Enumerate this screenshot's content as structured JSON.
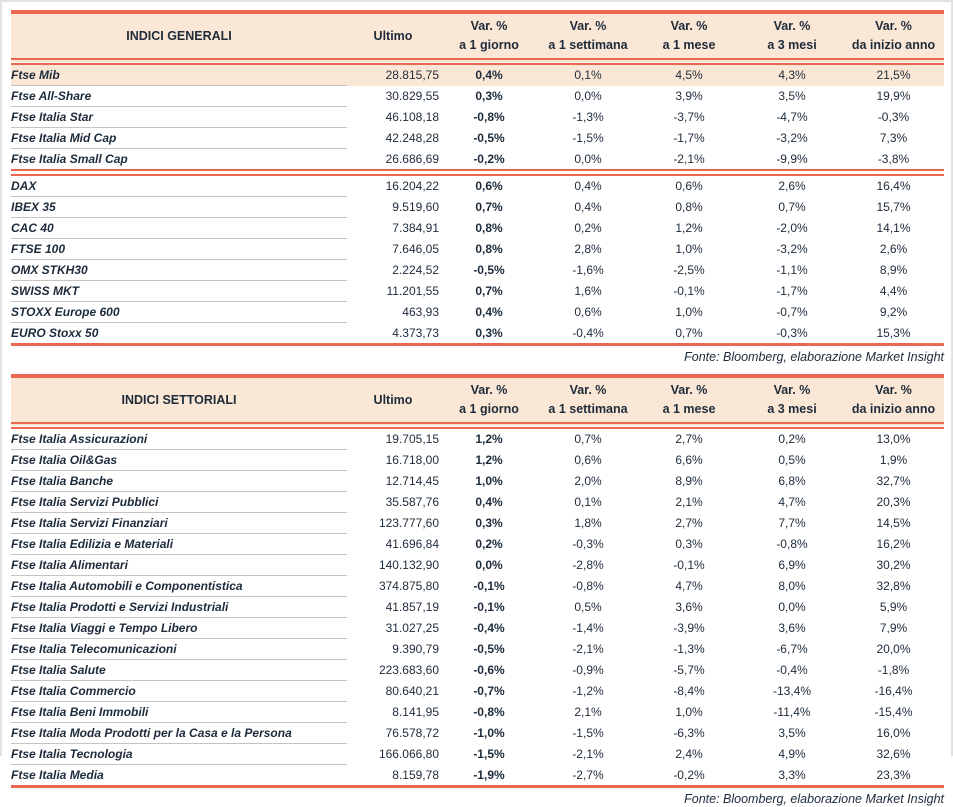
{
  "colors": {
    "accent": "#EC6750",
    "header_background": "#FBE7D5",
    "highlight_row_background": "#FBE7D5",
    "text": "#1D2B3A",
    "row_separator": "#C4C4C4",
    "outer_border": "#E2E2E2"
  },
  "tables": [
    {
      "title": "INDICI GENERALI",
      "ultimo_label": "Ultimo",
      "var_label": "Var. %",
      "period_labels": [
        "a 1 giorno",
        "a 1 settimana",
        "a 1 mese",
        "a 3 mesi",
        "da inizio anno"
      ],
      "footer": "Fonte: Bloomberg, elaborazione Market Insight",
      "groups": [
        [
          {
            "name": "Ftse Mib",
            "ultimo": "28.815,75",
            "d1": "0,4%",
            "w1": "0,1%",
            "m1": "4,5%",
            "m3": "4,3%",
            "ytd": "21,5%",
            "highlight": true
          },
          {
            "name": "Ftse All-Share",
            "ultimo": "30.829,55",
            "d1": "0,3%",
            "w1": "0,0%",
            "m1": "3,9%",
            "m3": "3,5%",
            "ytd": "19,9%"
          },
          {
            "name": "Ftse Italia Star",
            "ultimo": "46.108,18",
            "d1": "-0,8%",
            "w1": "-1,3%",
            "m1": "-3,7%",
            "m3": "-4,7%",
            "ytd": "-0,3%"
          },
          {
            "name": "Ftse Italia Mid Cap",
            "ultimo": "42.248,28",
            "d1": "-0,5%",
            "w1": "-1,5%",
            "m1": "-1,7%",
            "m3": "-3,2%",
            "ytd": "7,3%"
          },
          {
            "name": "Ftse Italia Small Cap",
            "ultimo": "26.686,69",
            "d1": "-0,2%",
            "w1": "0,0%",
            "m1": "-2,1%",
            "m3": "-9,9%",
            "ytd": "-3,8%"
          }
        ],
        [
          {
            "name": "DAX",
            "ultimo": "16.204,22",
            "d1": "0,6%",
            "w1": "0,4%",
            "m1": "0,6%",
            "m3": "2,6%",
            "ytd": "16,4%"
          },
          {
            "name": "IBEX 35",
            "ultimo": "9.519,60",
            "d1": "0,7%",
            "w1": "0,4%",
            "m1": "0,8%",
            "m3": "0,7%",
            "ytd": "15,7%"
          },
          {
            "name": "CAC 40",
            "ultimo": "7.384,91",
            "d1": "0,8%",
            "w1": "0,2%",
            "m1": "1,2%",
            "m3": "-2,0%",
            "ytd": "14,1%"
          },
          {
            "name": "FTSE 100",
            "ultimo": "7.646,05",
            "d1": "0,8%",
            "w1": "2,8%",
            "m1": "1,0%",
            "m3": "-3,2%",
            "ytd": "2,6%"
          },
          {
            "name": "OMX STKH30",
            "ultimo": "2.224,52",
            "d1": "-0,5%",
            "w1": "-1,6%",
            "m1": "-2,5%",
            "m3": "-1,1%",
            "ytd": "8,9%"
          },
          {
            "name": "SWISS MKT",
            "ultimo": "11.201,55",
            "d1": "0,7%",
            "w1": "1,6%",
            "m1": "-0,1%",
            "m3": "-1,7%",
            "ytd": "4,4%"
          },
          {
            "name": "STOXX Europe 600",
            "ultimo": "463,93",
            "d1": "0,4%",
            "w1": "0,6%",
            "m1": "1,0%",
            "m3": "-0,7%",
            "ytd": "9,2%"
          },
          {
            "name": "EURO Stoxx 50",
            "ultimo": "4.373,73",
            "d1": "0,3%",
            "w1": "-0,4%",
            "m1": "0,7%",
            "m3": "-0,3%",
            "ytd": "15,3%"
          }
        ]
      ]
    },
    {
      "title": "INDICI SETTORIALI",
      "ultimo_label": "Ultimo",
      "var_label": "Var. %",
      "period_labels": [
        "a 1 giorno",
        "a 1 settimana",
        "a 1 mese",
        "a 3 mesi",
        "da inizio anno"
      ],
      "footer": "Fonte: Bloomberg, elaborazione Market Insight",
      "groups": [
        [
          {
            "name": "Ftse Italia Assicurazioni",
            "ultimo": "19.705,15",
            "d1": "1,2%",
            "w1": "0,7%",
            "m1": "2,7%",
            "m3": "0,2%",
            "ytd": "13,0%"
          },
          {
            "name": "Ftse Italia Oil&Gas",
            "ultimo": "16.718,00",
            "d1": "1,2%",
            "w1": "0,6%",
            "m1": "6,6%",
            "m3": "0,5%",
            "ytd": "1,9%"
          },
          {
            "name": "Ftse Italia Banche",
            "ultimo": "12.714,45",
            "d1": "1,0%",
            "w1": "2,0%",
            "m1": "8,9%",
            "m3": "6,8%",
            "ytd": "32,7%"
          },
          {
            "name": "Ftse Italia Servizi Pubblici",
            "ultimo": "35.587,76",
            "d1": "0,4%",
            "w1": "0,1%",
            "m1": "2,1%",
            "m3": "4,7%",
            "ytd": "20,3%"
          },
          {
            "name": "Ftse Italia Servizi Finanziari",
            "ultimo": "123.777,60",
            "d1": "0,3%",
            "w1": "1,8%",
            "m1": "2,7%",
            "m3": "7,7%",
            "ytd": "14,5%"
          },
          {
            "name": "Ftse Italia Edilizia e Materiali",
            "ultimo": "41.696,84",
            "d1": "0,2%",
            "w1": "-0,3%",
            "m1": "0,3%",
            "m3": "-0,8%",
            "ytd": "16,2%"
          },
          {
            "name": "Ftse Italia Alimentari",
            "ultimo": "140.132,90",
            "d1": "0,0%",
            "w1": "-2,8%",
            "m1": "-0,1%",
            "m3": "6,9%",
            "ytd": "30,2%"
          },
          {
            "name": "Ftse Italia Automobili e Componentistica",
            "ultimo": "374.875,80",
            "d1": "-0,1%",
            "w1": "-0,8%",
            "m1": "4,7%",
            "m3": "8,0%",
            "ytd": "32,8%"
          },
          {
            "name": "Ftse Italia Prodotti e Servizi Industriali",
            "ultimo": "41.857,19",
            "d1": "-0,1%",
            "w1": "0,5%",
            "m1": "3,6%",
            "m3": "0,0%",
            "ytd": "5,9%"
          },
          {
            "name": "Ftse Italia Viaggi e Tempo Libero",
            "ultimo": "31.027,25",
            "d1": "-0,4%",
            "w1": "-1,4%",
            "m1": "-3,9%",
            "m3": "3,6%",
            "ytd": "7,9%"
          },
          {
            "name": "Ftse Italia Telecomunicazioni",
            "ultimo": "9.390,79",
            "d1": "-0,5%",
            "w1": "-2,1%",
            "m1": "-1,3%",
            "m3": "-6,7%",
            "ytd": "20,0%"
          },
          {
            "name": "Ftse Italia Salute",
            "ultimo": "223.683,60",
            "d1": "-0,6%",
            "w1": "-0,9%",
            "m1": "-5,7%",
            "m3": "-0,4%",
            "ytd": "-1,8%"
          },
          {
            "name": "Ftse Italia Commercio",
            "ultimo": "80.640,21",
            "d1": "-0,7%",
            "w1": "-1,2%",
            "m1": "-8,4%",
            "m3": "-13,4%",
            "ytd": "-16,4%"
          },
          {
            "name": "Ftse Italia Beni Immobili",
            "ultimo": "8.141,95",
            "d1": "-0,8%",
            "w1": "2,1%",
            "m1": "1,0%",
            "m3": "-11,4%",
            "ytd": "-15,4%"
          },
          {
            "name": "Ftse Italia Moda Prodotti per la Casa e la Persona",
            "ultimo": "76.578,72",
            "d1": "-1,0%",
            "w1": "-1,5%",
            "m1": "-6,3%",
            "m3": "3,5%",
            "ytd": "16,0%"
          },
          {
            "name": "Ftse Italia Tecnologia",
            "ultimo": "166.066,80",
            "d1": "-1,5%",
            "w1": "-2,1%",
            "m1": "2,4%",
            "m3": "4,9%",
            "ytd": "32,6%"
          },
          {
            "name": "Ftse Italia Media",
            "ultimo": "8.159,78",
            "d1": "-1,9%",
            "w1": "-2,7%",
            "m1": "-0,2%",
            "m3": "3,3%",
            "ytd": "23,3%"
          }
        ]
      ]
    }
  ]
}
